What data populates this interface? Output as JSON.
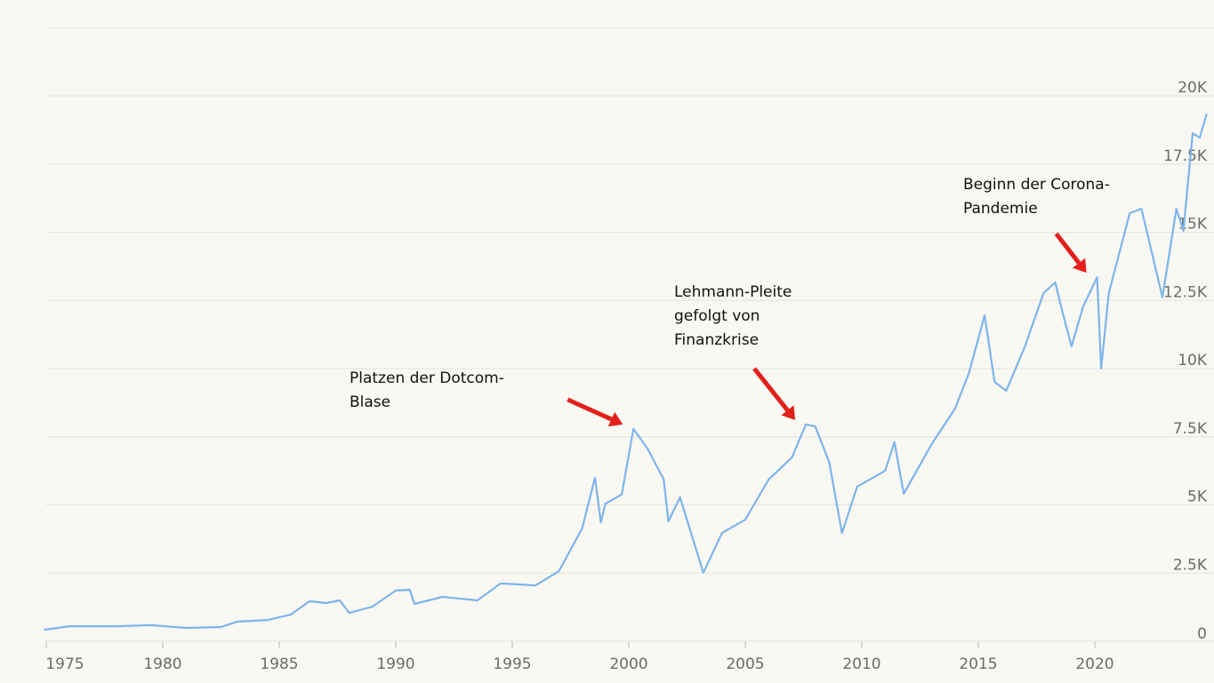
{
  "chart_data": {
    "type": "line",
    "title": "",
    "xlabel": "",
    "ylabel": "",
    "xlim": [
      1974.9,
      2024.8
    ],
    "ylim": [
      0,
      22500
    ],
    "grid": true,
    "line_color": "#7db5ea",
    "arrow_color": "#e3201b",
    "x_ticks": [
      {
        "value": 1975,
        "label": "1975"
      },
      {
        "value": 1980,
        "label": "1980"
      },
      {
        "value": 1985,
        "label": "1985"
      },
      {
        "value": 1990,
        "label": "1990"
      },
      {
        "value": 1995,
        "label": "1995"
      },
      {
        "value": 2000,
        "label": "2000"
      },
      {
        "value": 2005,
        "label": "2005"
      },
      {
        "value": 2010,
        "label": "2010"
      },
      {
        "value": 2015,
        "label": "2015"
      },
      {
        "value": 2020,
        "label": "2020"
      }
    ],
    "y_ticks": [
      {
        "value": 0,
        "label": "0"
      },
      {
        "value": 2500,
        "label": "2.5K"
      },
      {
        "value": 5000,
        "label": "5K"
      },
      {
        "value": 7500,
        "label": "7.5K"
      },
      {
        "value": 10000,
        "label": "10K"
      },
      {
        "value": 12500,
        "label": "12.5K"
      },
      {
        "value": 15000,
        "label": "15K"
      },
      {
        "value": 17500,
        "label": "17.5K"
      },
      {
        "value": 20000,
        "label": "20K"
      },
      {
        "value": 22500,
        "label": ""
      }
    ],
    "series": [
      {
        "x": [
          1974.9,
          1976,
          1978,
          1979.5,
          1981,
          1982.5,
          1983.2,
          1984.5,
          1985.5,
          1986.3,
          1987,
          1987.6,
          1988,
          1989,
          1990,
          1990.6,
          1990.8,
          1992,
          1993.5,
          1994.5,
          1996,
          1997,
          1998,
          1998.55,
          1998.8,
          1999,
          1999.7,
          2000.2,
          2000.8,
          2001.5,
          2001.7,
          2002.2,
          2003.2,
          2004,
          2005,
          2006,
          2007,
          2007.6,
          2008,
          2008.6,
          2009.15,
          2009.8,
          2011,
          2011.4,
          2011.8,
          2013,
          2014,
          2014.6,
          2015.27,
          2015.7,
          2016.2,
          2017,
          2017.8,
          2018.3,
          2018.6,
          2019,
          2019.5,
          2020.1,
          2020.27,
          2020.6,
          2021.5,
          2022,
          2022.5,
          2022.9,
          2023.5,
          2023.8,
          2024.2,
          2024.5,
          2024.8
        ],
        "values": [
          420,
          550,
          550,
          590,
          490,
          520,
          720,
          780,
          980,
          1470,
          1400,
          1500,
          1040,
          1270,
          1860,
          1890,
          1370,
          1630,
          1500,
          2120,
          2050,
          2570,
          4140,
          6000,
          4360,
          5050,
          5380,
          7790,
          7070,
          5930,
          4400,
          5280,
          2510,
          3970,
          4460,
          5930,
          6740,
          7950,
          7880,
          6580,
          3970,
          5670,
          6250,
          7300,
          5410,
          7230,
          8530,
          9840,
          11950,
          9510,
          9190,
          10810,
          12770,
          13160,
          12120,
          10810,
          12280,
          13350,
          10000,
          12770,
          15700,
          15860,
          14070,
          12610,
          15860,
          15050,
          18630,
          18470,
          19350
        ]
      }
    ],
    "annotations": [
      {
        "lines": [
          "Platzen der Dotcom-",
          "Blase"
        ],
        "x": 2000.2,
        "y": 7790
      },
      {
        "lines": [
          "Lehmann-Pleite",
          "gefolgt von",
          "Finanzkrise"
        ],
        "x": 2007.6,
        "y": 7950
      },
      {
        "lines": [
          "Beginn der Corona-",
          "Pandemie"
        ],
        "x": 2020.1,
        "y": 13350
      }
    ]
  }
}
